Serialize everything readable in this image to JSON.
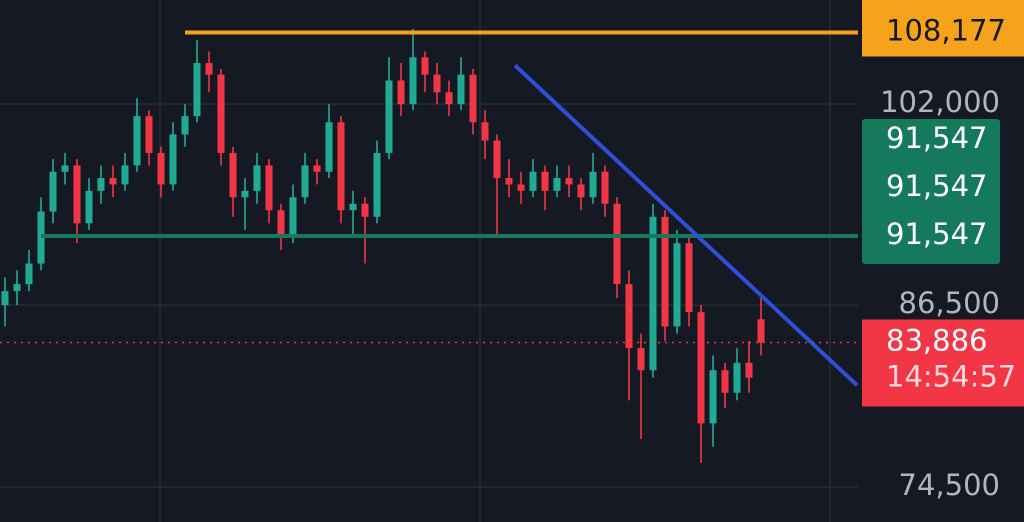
{
  "chart_data": {
    "type": "candlestick",
    "log_scale": true,
    "ylim": [
      72400,
      111100
    ],
    "yticks": [
      {
        "value": 102000,
        "label": "102,000"
      },
      {
        "value": 86500,
        "label": "86,500"
      },
      {
        "value": 74500,
        "label": "74,500"
      }
    ],
    "up_color": "#22ab94",
    "down_color": "#f23645",
    "open": [
      86500,
      87500,
      88000,
      89500,
      93400,
      96500,
      97000,
      92500,
      95000,
      96000,
      95500,
      97000,
      101000,
      98000,
      95500,
      99500,
      101000,
      105500,
      104500,
      98000,
      94500,
      95000,
      97000,
      93500,
      91500,
      94500,
      97000,
      96500,
      100500,
      93500,
      94000,
      93000,
      98000,
      104000,
      102000,
      106000,
      104500,
      103000,
      102000,
      104500,
      100500,
      99000,
      96000,
      95500,
      95000,
      96500,
      95000,
      96000,
      95500,
      94500,
      96500,
      94000,
      88000,
      83500,
      82000,
      93000,
      85000,
      91000,
      86000,
      78500,
      82000,
      80500,
      82500,
      85500
    ],
    "high": [
      88500,
      89000,
      90500,
      94500,
      97500,
      98000,
      97500,
      96000,
      97000,
      97000,
      98000,
      102500,
      101500,
      98500,
      100500,
      102000,
      107500,
      106500,
      105000,
      98500,
      96000,
      98000,
      97500,
      94000,
      95500,
      98000,
      97500,
      102000,
      101000,
      95000,
      94500,
      99000,
      106000,
      105500,
      108500,
      106500,
      105500,
      104000,
      106000,
      105000,
      101500,
      99500,
      97500,
      96500,
      97500,
      97000,
      97000,
      97000,
      96000,
      98000,
      97000,
      94500,
      89000,
      84500,
      94000,
      93500,
      92000,
      91500,
      86500,
      83000,
      82500,
      83500,
      84000,
      87000
    ],
    "low": [
      85000,
      86500,
      87500,
      89000,
      92500,
      95500,
      91000,
      92000,
      94000,
      94500,
      95000,
      96500,
      97000,
      94500,
      95000,
      98500,
      100500,
      103000,
      97000,
      93000,
      92000,
      94000,
      92500,
      90500,
      91000,
      94000,
      95500,
      96000,
      92500,
      91500,
      89500,
      92500,
      97500,
      101000,
      101500,
      103000,
      102000,
      101000,
      101500,
      99500,
      97500,
      91500,
      94500,
      94000,
      94500,
      93500,
      94500,
      94500,
      93500,
      94000,
      93000,
      87000,
      80000,
      77500,
      81500,
      84000,
      84500,
      85000,
      76000,
      77000,
      79500,
      80000,
      80500,
      83000
    ],
    "close": [
      87500,
      88000,
      89500,
      93400,
      96500,
      97000,
      92500,
      95000,
      96000,
      95500,
      97000,
      101000,
      98000,
      95500,
      99500,
      101000,
      105500,
      104500,
      98000,
      94500,
      95000,
      97000,
      93500,
      91500,
      94500,
      97000,
      96500,
      100500,
      93500,
      94000,
      93000,
      98000,
      104000,
      102000,
      106000,
      104500,
      103000,
      102000,
      104500,
      100500,
      99000,
      96000,
      95500,
      95000,
      96500,
      95000,
      96000,
      95500,
      94500,
      96500,
      94000,
      88000,
      83500,
      82000,
      93000,
      85000,
      91000,
      86000,
      78500,
      82000,
      80500,
      82500,
      81500,
      83886
    ],
    "levels": [
      {
        "value": 108177,
        "label": "108,177",
        "color": "#f7a21b",
        "from_index": 15
      },
      {
        "value": 91547,
        "label": "91,547",
        "color": "#157a5c",
        "from_index": 3
      }
    ],
    "trendline": {
      "x": [
        42.5,
        71
      ],
      "values": [
        105300,
        81000
      ],
      "color": "#2f4fd8"
    },
    "last_price": {
      "value": 83886,
      "label": "83,886",
      "countdown": "14:54:57",
      "color": "#f23645"
    }
  }
}
